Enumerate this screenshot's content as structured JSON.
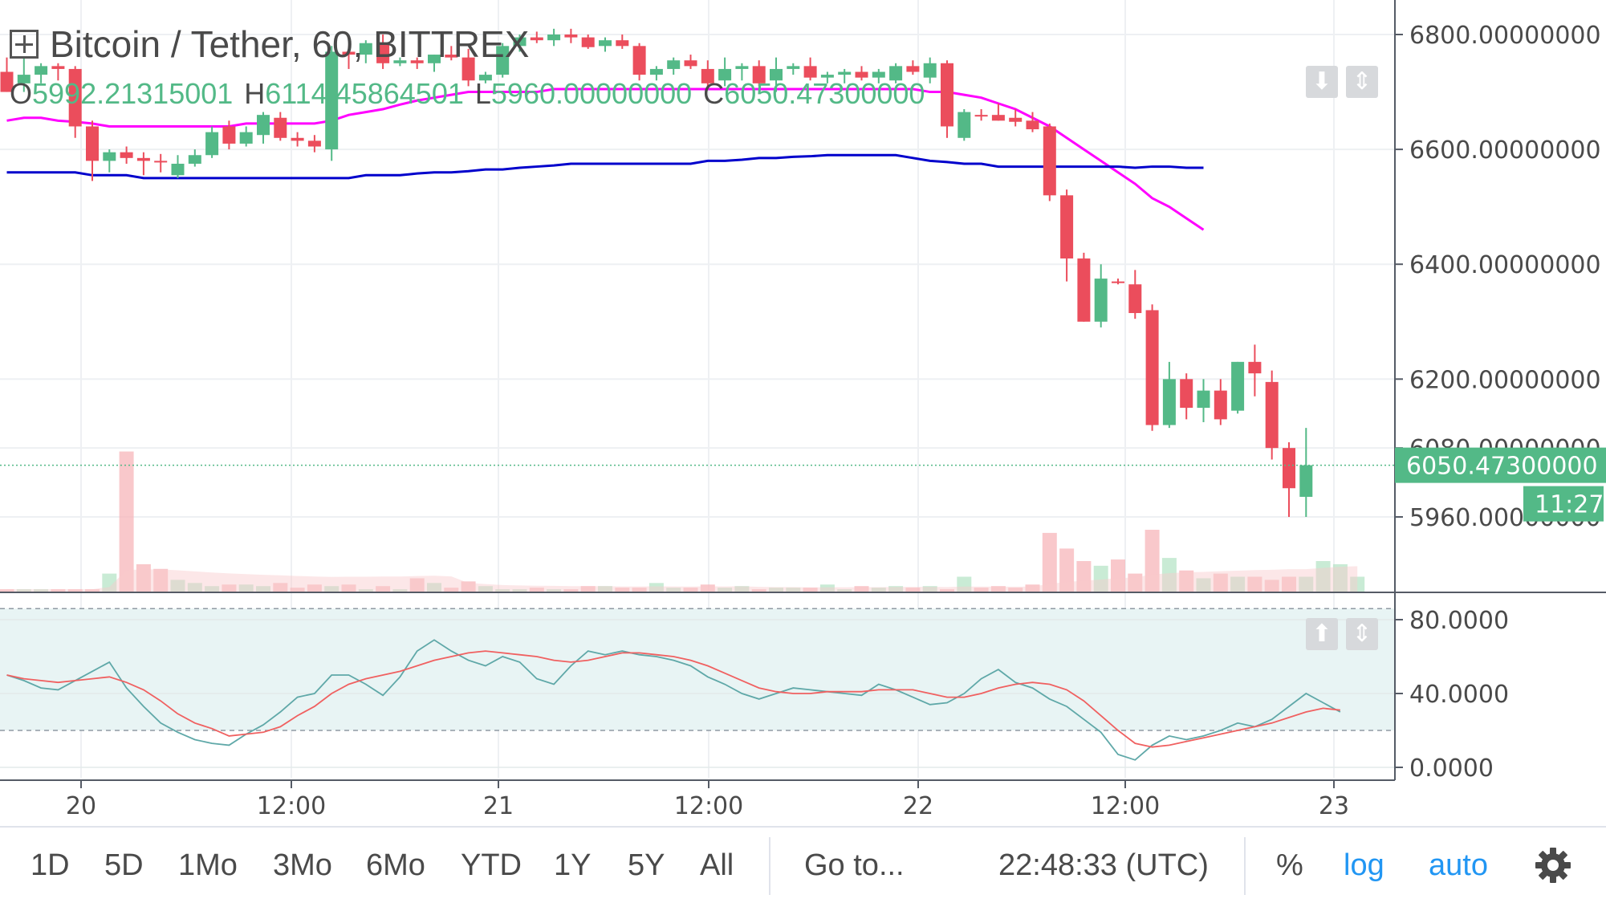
{
  "legend": {
    "title": "Bitcoin / Tether, 60, BITTREX",
    "o_label": "O",
    "o_value": "5992.21315001",
    "h_label": "H",
    "h_value": "6114.45864501",
    "l_label": "L",
    "l_value": "5960.00000000",
    "c_label": "C",
    "c_value": "6050.47300000"
  },
  "price_axis": {
    "labels": [
      "6800.00000000",
      "6600.00000000",
      "6400.00000000",
      "6200.00000000",
      "6080.00000000",
      "5960.00000000"
    ],
    "current_price": "6050.47300000",
    "countdown": "11:27"
  },
  "oscillator_axis": {
    "labels": [
      "80.0000",
      "40.0000",
      "0.0000"
    ]
  },
  "time_axis": {
    "labels": [
      "20",
      "12:00",
      "21",
      "12:00",
      "22",
      "12:00",
      "23"
    ]
  },
  "toolbar": {
    "ranges": [
      "1D",
      "5D",
      "1Mo",
      "3Mo",
      "6Mo",
      "YTD",
      "1Y",
      "5Y",
      "All"
    ],
    "goto": "Go to...",
    "clock": "22:48:33 (UTC)",
    "percent": "%",
    "log": "log",
    "auto": "auto"
  },
  "colors": {
    "up": "#53b987",
    "down": "#eb4d5c",
    "ma_fast": "#ff00ff",
    "ma_slow": "#0000cc",
    "stoch_k": "#5fa8a8",
    "stoch_d": "#f06060",
    "osc_band": "#e8f4f4"
  },
  "icons": {
    "settings": "gear-icon",
    "expand": "plus-box-icon",
    "scale_down": "arrow-down-icon",
    "scale_fit": "arrows-vertical-icon"
  },
  "chart_data": [
    {
      "type": "candlestick",
      "title": "Bitcoin / Tether, 60, BITTREX",
      "x_ticks": [
        "20",
        "12:00",
        "21",
        "12:00",
        "22",
        "12:00",
        "23"
      ],
      "y_ticks": [
        6800,
        6600,
        6400,
        6200,
        6080,
        5960
      ],
      "ylim": [
        5890,
        6830
      ],
      "candles": [
        {
          "o": 6735,
          "h": 6760,
          "l": 6700,
          "c": 6700
        },
        {
          "o": 6715,
          "h": 6760,
          "l": 6700,
          "c": 6730
        },
        {
          "o": 6730,
          "h": 6750,
          "l": 6715,
          "c": 6745
        },
        {
          "o": 6745,
          "h": 6750,
          "l": 6720,
          "c": 6740
        },
        {
          "o": 6740,
          "h": 6745,
          "l": 6620,
          "c": 6640
        },
        {
          "o": 6640,
          "h": 6650,
          "l": 6545,
          "c": 6580
        },
        {
          "o": 6580,
          "h": 6600,
          "l": 6560,
          "c": 6595
        },
        {
          "o": 6595,
          "h": 6605,
          "l": 6575,
          "c": 6585
        },
        {
          "o": 6585,
          "h": 6595,
          "l": 6555,
          "c": 6580
        },
        {
          "o": 6580,
          "h": 6592,
          "l": 6560,
          "c": 6578
        },
        {
          "o": 6555,
          "h": 6590,
          "l": 6550,
          "c": 6575
        },
        {
          "o": 6575,
          "h": 6600,
          "l": 6570,
          "c": 6590
        },
        {
          "o": 6590,
          "h": 6640,
          "l": 6585,
          "c": 6630
        },
        {
          "o": 6640,
          "h": 6650,
          "l": 6600,
          "c": 6610
        },
        {
          "o": 6610,
          "h": 6640,
          "l": 6605,
          "c": 6630
        },
        {
          "o": 6625,
          "h": 6665,
          "l": 6610,
          "c": 6660
        },
        {
          "o": 6655,
          "h": 6665,
          "l": 6615,
          "c": 6620
        },
        {
          "o": 6620,
          "h": 6630,
          "l": 6605,
          "c": 6615
        },
        {
          "o": 6615,
          "h": 6625,
          "l": 6595,
          "c": 6605
        },
        {
          "o": 6600,
          "h": 6780,
          "l": 6580,
          "c": 6770
        },
        {
          "o": 6770,
          "h": 6780,
          "l": 6740,
          "c": 6765
        },
        {
          "o": 6765,
          "h": 6790,
          "l": 6750,
          "c": 6785
        },
        {
          "o": 6785,
          "h": 6800,
          "l": 6740,
          "c": 6750
        },
        {
          "o": 6750,
          "h": 6760,
          "l": 6745,
          "c": 6755
        },
        {
          "o": 6755,
          "h": 6760,
          "l": 6740,
          "c": 6750
        },
        {
          "o": 6750,
          "h": 6765,
          "l": 6735,
          "c": 6765
        },
        {
          "o": 6765,
          "h": 6780,
          "l": 6755,
          "c": 6760
        },
        {
          "o": 6760,
          "h": 6775,
          "l": 6710,
          "c": 6720
        },
        {
          "o": 6720,
          "h": 6735,
          "l": 6715,
          "c": 6730
        },
        {
          "o": 6730,
          "h": 6785,
          "l": 6725,
          "c": 6780
        },
        {
          "o": 6780,
          "h": 6800,
          "l": 6770,
          "c": 6795
        },
        {
          "o": 6795,
          "h": 6805,
          "l": 6785,
          "c": 6790
        },
        {
          "o": 6790,
          "h": 6810,
          "l": 6780,
          "c": 6800
        },
        {
          "o": 6800,
          "h": 6810,
          "l": 6785,
          "c": 6795
        },
        {
          "o": 6795,
          "h": 6800,
          "l": 6775,
          "c": 6778
        },
        {
          "o": 6780,
          "h": 6795,
          "l": 6770,
          "c": 6790
        },
        {
          "o": 6790,
          "h": 6800,
          "l": 6775,
          "c": 6780
        },
        {
          "o": 6780,
          "h": 6785,
          "l": 6720,
          "c": 6730
        },
        {
          "o": 6730,
          "h": 6745,
          "l": 6720,
          "c": 6740
        },
        {
          "o": 6740,
          "h": 6760,
          "l": 6730,
          "c": 6755
        },
        {
          "o": 6755,
          "h": 6765,
          "l": 6740,
          "c": 6745
        },
        {
          "o": 6740,
          "h": 6755,
          "l": 6710,
          "c": 6715
        },
        {
          "o": 6720,
          "h": 6760,
          "l": 6710,
          "c": 6740
        },
        {
          "o": 6740,
          "h": 6750,
          "l": 6720,
          "c": 6745
        },
        {
          "o": 6745,
          "h": 6755,
          "l": 6710,
          "c": 6715
        },
        {
          "o": 6720,
          "h": 6760,
          "l": 6700,
          "c": 6740
        },
        {
          "o": 6740,
          "h": 6750,
          "l": 6730,
          "c": 6745
        },
        {
          "o": 6745,
          "h": 6760,
          "l": 6720,
          "c": 6725
        },
        {
          "o": 6725,
          "h": 6735,
          "l": 6715,
          "c": 6730
        },
        {
          "o": 6730,
          "h": 6740,
          "l": 6715,
          "c": 6735
        },
        {
          "o": 6735,
          "h": 6745,
          "l": 6720,
          "c": 6725
        },
        {
          "o": 6725,
          "h": 6740,
          "l": 6715,
          "c": 6735
        },
        {
          "o": 6720,
          "h": 6750,
          "l": 6715,
          "c": 6745
        },
        {
          "o": 6745,
          "h": 6755,
          "l": 6730,
          "c": 6735
        },
        {
          "o": 6725,
          "h": 6760,
          "l": 6715,
          "c": 6750
        },
        {
          "o": 6750,
          "h": 6755,
          "l": 6620,
          "c": 6640
        },
        {
          "o": 6620,
          "h": 6670,
          "l": 6615,
          "c": 6665
        },
        {
          "o": 6660,
          "h": 6670,
          "l": 6650,
          "c": 6658
        },
        {
          "o": 6660,
          "h": 6680,
          "l": 6650,
          "c": 6650
        },
        {
          "o": 6655,
          "h": 6670,
          "l": 6640,
          "c": 6648
        },
        {
          "o": 6650,
          "h": 6665,
          "l": 6630,
          "c": 6635
        },
        {
          "o": 6640,
          "h": 6645,
          "l": 6510,
          "c": 6520
        },
        {
          "o": 6520,
          "h": 6530,
          "l": 6370,
          "c": 6410
        },
        {
          "o": 6410,
          "h": 6420,
          "l": 6300,
          "c": 6300
        },
        {
          "o": 6300,
          "h": 6400,
          "l": 6290,
          "c": 6375
        },
        {
          "o": 6370,
          "h": 6375,
          "l": 6365,
          "c": 6368
        },
        {
          "o": 6365,
          "h": 6390,
          "l": 6305,
          "c": 6315
        },
        {
          "o": 6320,
          "h": 6330,
          "l": 6110,
          "c": 6120
        },
        {
          "o": 6120,
          "h": 6230,
          "l": 6115,
          "c": 6200
        },
        {
          "o": 6200,
          "h": 6210,
          "l": 6130,
          "c": 6150
        },
        {
          "o": 6150,
          "h": 6200,
          "l": 6125,
          "c": 6180
        },
        {
          "o": 6180,
          "h": 6200,
          "l": 6120,
          "c": 6130
        },
        {
          "o": 6145,
          "h": 6230,
          "l": 6140,
          "c": 6230
        },
        {
          "o": 6230,
          "h": 6260,
          "l": 6170,
          "c": 6210
        },
        {
          "o": 6195,
          "h": 6215,
          "l": 6060,
          "c": 6080
        },
        {
          "o": 6080,
          "h": 6090,
          "l": 5960,
          "c": 6010
        },
        {
          "o": 5995,
          "h": 6115,
          "l": 5960,
          "c": 6050
        }
      ],
      "series": [
        {
          "name": "MA (fast)",
          "color": "#ff00ff",
          "values": [
            6650,
            6655,
            6655,
            6650,
            6648,
            6645,
            6640,
            6640,
            6640,
            6640,
            6640,
            6640,
            6640,
            6640,
            6645,
            6645,
            6645,
            6645,
            6645,
            6650,
            6660,
            6665,
            6670,
            6678,
            6685,
            6690,
            6695,
            6700,
            6700,
            6700,
            6700,
            6700,
            6705,
            6705,
            6705,
            6705,
            6705,
            6705,
            6705,
            6705,
            6705,
            6705,
            6705,
            6705,
            6705,
            6705,
            6705,
            6705,
            6705,
            6705,
            6705,
            6705,
            6705,
            6705,
            6700,
            6700,
            6695,
            6690,
            6680,
            6670,
            6655,
            6640,
            6620,
            6600,
            6580,
            6560,
            6540,
            6515,
            6500,
            6480,
            6460
          ]
        },
        {
          "name": "MA (slow)",
          "color": "#0000cc",
          "values": [
            6560,
            6560,
            6560,
            6560,
            6560,
            6555,
            6555,
            6555,
            6550,
            6550,
            6550,
            6550,
            6550,
            6550,
            6550,
            6550,
            6550,
            6550,
            6550,
            6550,
            6550,
            6555,
            6555,
            6555,
            6558,
            6560,
            6560,
            6562,
            6565,
            6565,
            6568,
            6570,
            6572,
            6575,
            6575,
            6575,
            6575,
            6575,
            6575,
            6575,
            6575,
            6580,
            6580,
            6582,
            6585,
            6585,
            6587,
            6588,
            6590,
            6590,
            6590,
            6590,
            6590,
            6585,
            6580,
            6578,
            6575,
            6575,
            6570,
            6570,
            6570,
            6570,
            6570,
            6570,
            6570,
            6570,
            6568,
            6570,
            6570,
            6568,
            6568
          ]
        },
        {
          "name": "Volume",
          "values": [
            2,
            2,
            2,
            2,
            2,
            2,
            12,
            90,
            18,
            15,
            8,
            6,
            4,
            5,
            5,
            4,
            6,
            3,
            5,
            4,
            5,
            2,
            4,
            2,
            9,
            6,
            3,
            7,
            4,
            2,
            2,
            3,
            2,
            2,
            4,
            4,
            3,
            3,
            6,
            3,
            3,
            5,
            3,
            4,
            2,
            3,
            3,
            3,
            5,
            2,
            4,
            3,
            4,
            3,
            4,
            2,
            10,
            3,
            4,
            3,
            5,
            38,
            28,
            20,
            17,
            21,
            12,
            40,
            22,
            14,
            9,
            12,
            10,
            10,
            8,
            10,
            10,
            20,
            18,
            10
          ]
        }
      ]
    },
    {
      "type": "line",
      "title": "",
      "y_ticks": [
        80,
        40,
        0
      ],
      "ylim": [
        -6,
        86
      ],
      "band": [
        20,
        86
      ],
      "series": [
        {
          "name": "Stoch %K",
          "color": "#5fa8a8",
          "values": [
            50,
            47,
            43,
            42,
            47,
            52,
            57,
            43,
            33,
            24,
            19,
            15,
            13,
            12,
            18,
            23,
            30,
            38,
            40,
            50,
            50,
            45,
            39,
            49,
            63,
            69,
            63,
            58,
            55,
            60,
            57,
            48,
            45,
            55,
            63,
            61,
            63,
            61,
            60,
            58,
            55,
            49,
            45,
            40,
            37,
            40,
            43,
            42,
            41,
            40,
            39,
            45,
            42,
            38,
            34,
            35,
            40,
            48,
            53,
            46,
            43,
            37,
            33,
            26,
            19,
            7,
            4,
            12,
            17,
            15,
            17,
            20,
            24,
            22,
            26,
            33,
            40,
            35,
            30
          ]
        },
        {
          "name": "Stoch %D",
          "color": "#f06060",
          "values": [
            50,
            48,
            47,
            46,
            47,
            48,
            49,
            46,
            42,
            36,
            29,
            24,
            21,
            17,
            18,
            19,
            22,
            28,
            33,
            40,
            45,
            48,
            50,
            52,
            55,
            58,
            60,
            62,
            63,
            62,
            61,
            60,
            58,
            57,
            58,
            60,
            62,
            62,
            61,
            60,
            58,
            55,
            51,
            47,
            43,
            41,
            40,
            40,
            41,
            41,
            41,
            42,
            42,
            42,
            40,
            38,
            38,
            40,
            43,
            45,
            46,
            45,
            42,
            36,
            28,
            20,
            13,
            11,
            12,
            14,
            16,
            18,
            20,
            22,
            24,
            27,
            30,
            32,
            31
          ]
        }
      ]
    }
  ]
}
